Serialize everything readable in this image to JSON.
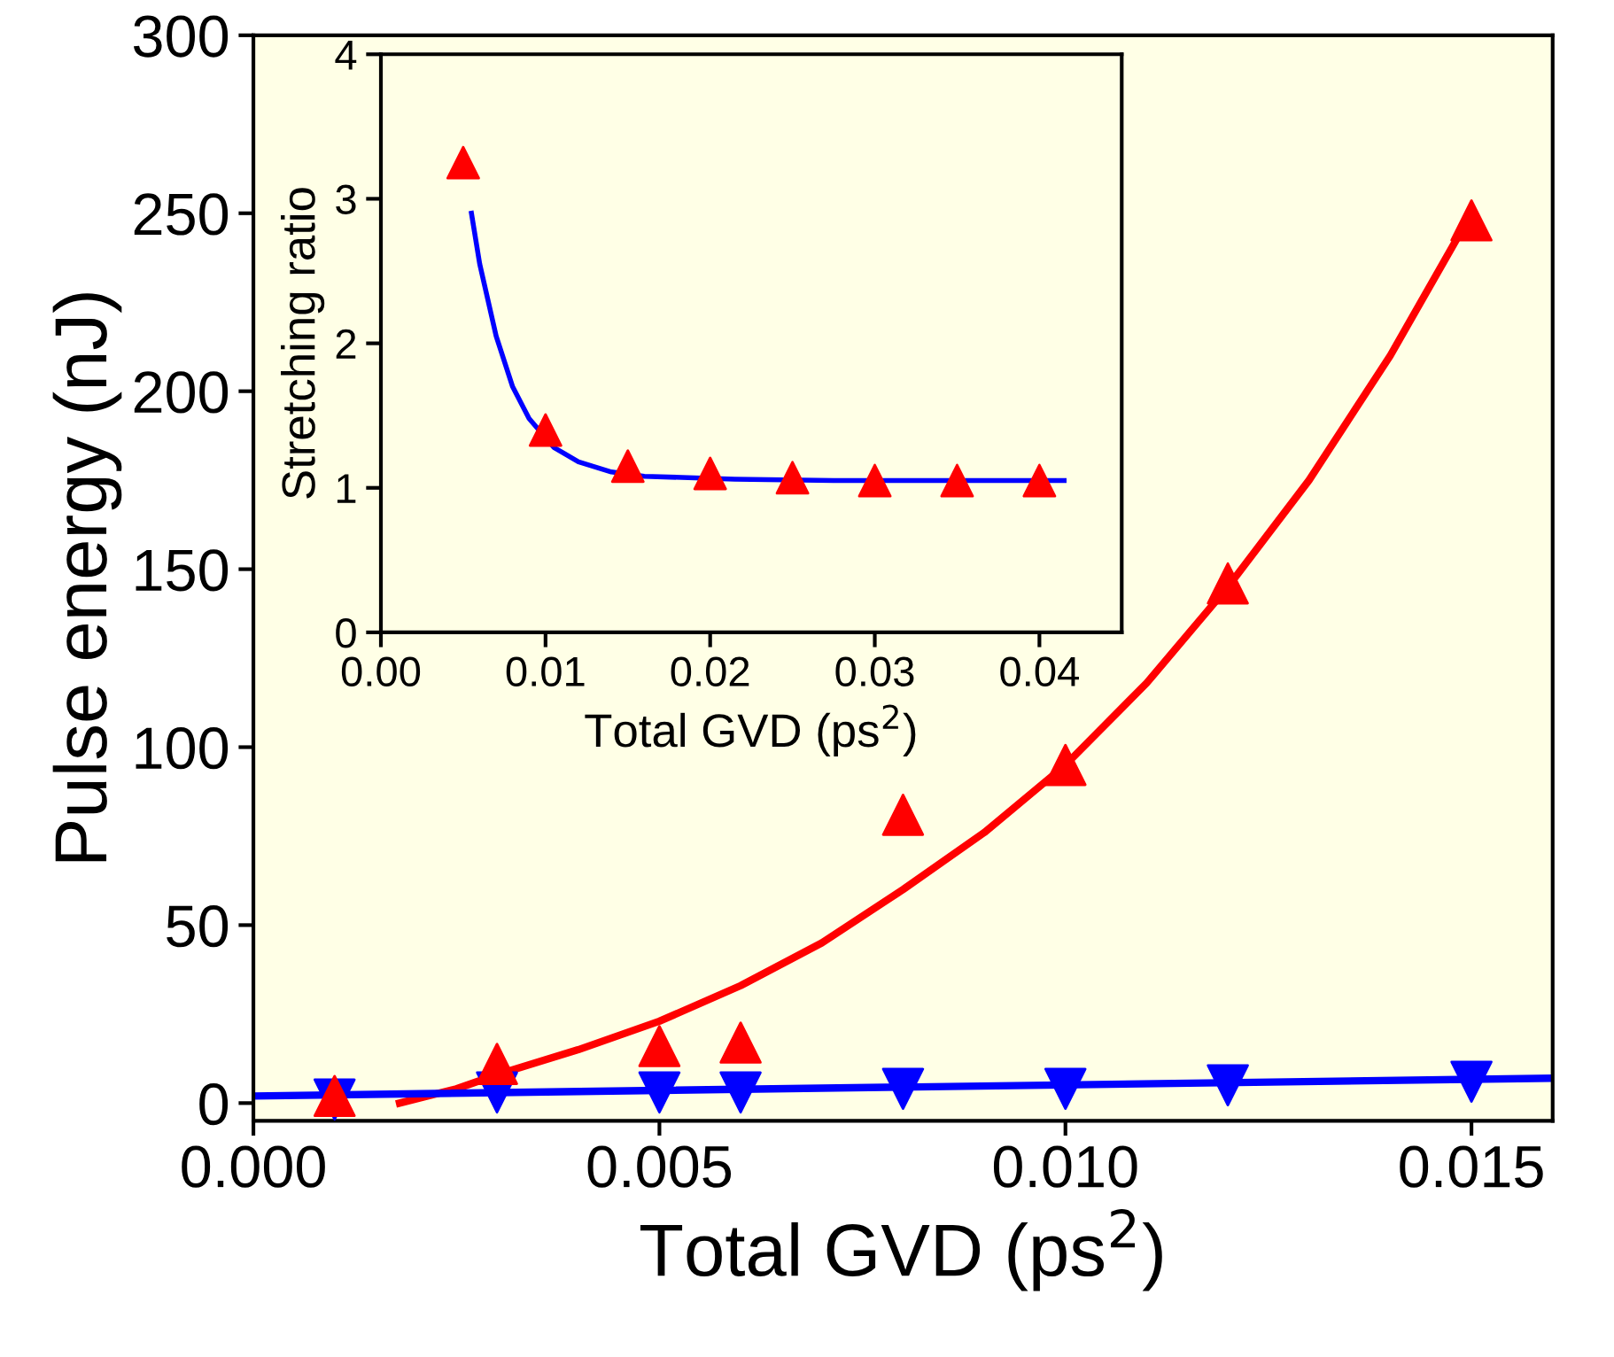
{
  "chart_data": [
    {
      "type": "scatter",
      "xlabel": "Total GVD (ps$^{2}$)",
      "ylabel": "Pulse energy (nJ)",
      "xlim": [
        0.0,
        0.016
      ],
      "ylim": [
        -5,
        300
      ],
      "xticks": [
        {
          "value": 0.0,
          "label": "0.000"
        },
        {
          "value": 0.005,
          "label": "0.005"
        },
        {
          "value": 0.01,
          "label": "0.010"
        },
        {
          "value": 0.015,
          "label": "0.015"
        }
      ],
      "yticks": [
        0,
        50,
        100,
        150,
        200,
        250,
        300
      ],
      "grid": false,
      "series": [
        {
          "marker": "triangle",
          "color": "#ff0000",
          "x": [
            0.001,
            0.003,
            0.005,
            0.006,
            0.008,
            0.01,
            0.012,
            0.015
          ],
          "values": [
            2,
            11,
            16,
            17,
            81,
            95,
            146,
            248
          ]
        },
        {
          "marker": "triangle_down",
          "color": "#0000ff",
          "x": [
            0.001,
            0.003,
            0.005,
            0.006,
            0.008,
            0.01,
            0.012,
            0.015
          ],
          "values": [
            1,
            3,
            3,
            3,
            4,
            4,
            5,
            6
          ]
        },
        {
          "type": "line",
          "marker": "none",
          "line_style": "solid",
          "color": "#ff0000",
          "x": [
            0.0018,
            0.0025,
            0.003,
            0.004,
            0.005,
            0.006,
            0.007,
            0.008,
            0.009,
            0.01,
            0.011,
            0.012,
            0.013,
            0.014,
            0.015
          ],
          "values": [
            0,
            4,
            8,
            15,
            23,
            33,
            45,
            60,
            76,
            95,
            118,
            145,
            175,
            210,
            250
          ]
        },
        {
          "type": "line",
          "marker": "none",
          "line_style": "solid",
          "color": "#0000ff",
          "x": [
            0.0,
            0.016
          ],
          "values": [
            2,
            7
          ]
        }
      ]
    },
    {
      "type": "scatter",
      "xlabel": "Total GVD (ps$^{2}$)",
      "ylabel": "Stretching ratio",
      "xlim": [
        0.0,
        0.045
      ],
      "ylim": [
        0,
        4
      ],
      "xticks": [
        {
          "value": 0.0,
          "label": "0.00"
        },
        {
          "value": 0.01,
          "label": "0.01"
        },
        {
          "value": 0.02,
          "label": "0.02"
        },
        {
          "value": 0.03,
          "label": "0.03"
        },
        {
          "value": 0.04,
          "label": "0.04"
        }
      ],
      "yticks": [
        0,
        1,
        2,
        3,
        4
      ],
      "grid": false,
      "series": [
        {
          "type": "line",
          "marker": "none",
          "line_style": "solid",
          "color": "#0000ff",
          "x": [
            0.0055,
            0.006,
            0.007,
            0.008,
            0.009,
            0.0105,
            0.012,
            0.014,
            0.016,
            0.0215,
            0.0275,
            0.0325,
            0.0415
          ],
          "values": [
            2.9,
            2.55,
            2.05,
            1.7,
            1.48,
            1.28,
            1.18,
            1.11,
            1.08,
            1.06,
            1.05,
            1.05,
            1.05
          ]
        },
        {
          "marker": "triangle",
          "color": "#ff0000",
          "x": [
            0.005,
            0.01,
            0.015,
            0.02,
            0.025,
            0.03,
            0.035,
            0.04
          ],
          "values": [
            3.25,
            1.4,
            1.15,
            1.1,
            1.07,
            1.05,
            1.05,
            1.05
          ]
        }
      ]
    }
  ]
}
